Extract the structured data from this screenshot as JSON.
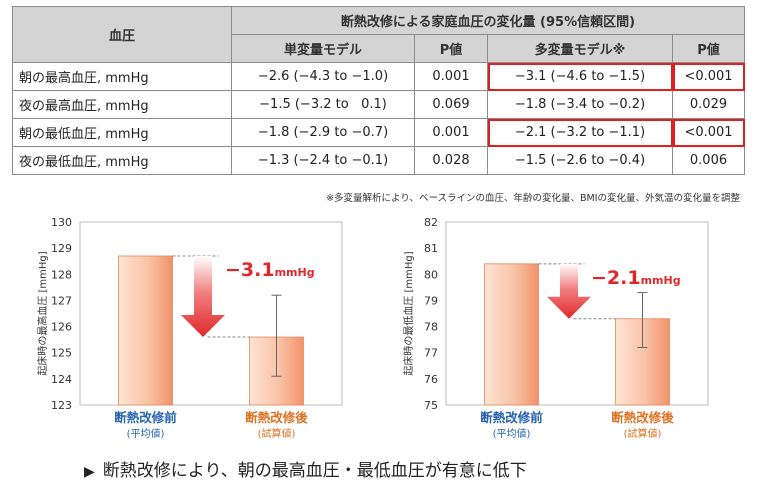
{
  "table": {
    "col_bp": "血圧",
    "col_group": "断熱改修による家庭血圧の変化量 (95%信頼区間)",
    "col_uni": "単変量モデル",
    "col_p1": "P値",
    "col_multi": "多変量モデル※",
    "col_p2": "P値",
    "rows": [
      {
        "label": "朝の最高血圧, mmHg",
        "uni": "−2.6 (−4.3 to −1.0)",
        "p1": "0.001",
        "multi": "−3.1 (−4.6 to −1.5)",
        "p2": "<0.001",
        "highlight": true
      },
      {
        "label": "夜の最高血圧, mmHg",
        "uni": "−1.5 (−3.2 to   0.1)",
        "p1": "0.069",
        "multi": "−1.8 (−3.4 to −0.2)",
        "p2": "0.029",
        "highlight": false
      },
      {
        "label": "朝の最低血圧, mmHg",
        "uni": "−1.8 (−2.9 to −0.7)",
        "p1": "0.001",
        "multi": "−2.1 (−3.2 to −1.1)",
        "p2": "<0.001",
        "highlight": true
      },
      {
        "label": "夜の最低血圧, mmHg",
        "uni": "−1.3 (−2.4 to −0.1)",
        "p1": "0.028",
        "multi": "−1.5 (−2.6 to −0.4)",
        "p2": "0.006",
        "highlight": false
      }
    ]
  },
  "note": "※多変量解析により、ベースラインの血圧、年齢の変化量、BMIの変化量、外気温の変化量を調整",
  "chart_data": [
    {
      "type": "bar",
      "ylabel": "起床時の最高血圧 [mmHg]",
      "ylim": [
        123,
        130
      ],
      "yticks": [
        "130",
        "129",
        "128",
        "127",
        "126",
        "125",
        "124",
        "123"
      ],
      "categories": [
        "断熱改修前",
        "断熱改修後"
      ],
      "sublabels": [
        "(平均値)",
        "(試算値)"
      ],
      "values": [
        128.7,
        125.6
      ],
      "error": [
        null,
        [
          124.1,
          127.2
        ]
      ],
      "delta_value": "−3.1",
      "delta_unit": "mmHg",
      "colors": {
        "before_label": "#2563b0",
        "after_label": "#e07020",
        "delta": "#e0282a"
      }
    },
    {
      "type": "bar",
      "ylabel": "起床時の最低血圧 [mmHg]",
      "ylim": [
        75,
        82
      ],
      "yticks": [
        "82",
        "81",
        "80",
        "79",
        "78",
        "77",
        "76",
        "75"
      ],
      "categories": [
        "断熱改修前",
        "断熱改修後"
      ],
      "sublabels": [
        "(平均値)",
        "(試算値)"
      ],
      "values": [
        80.4,
        78.3
      ],
      "error": [
        null,
        [
          77.2,
          79.3
        ]
      ],
      "delta_value": "−2.1",
      "delta_unit": "mmHg",
      "colors": {
        "before_label": "#2563b0",
        "after_label": "#e07020",
        "delta": "#e0282a"
      }
    }
  ],
  "footer": {
    "marker": "▶",
    "text": "断熱改修により、朝の最高血圧・最低血圧が有意に低下"
  }
}
